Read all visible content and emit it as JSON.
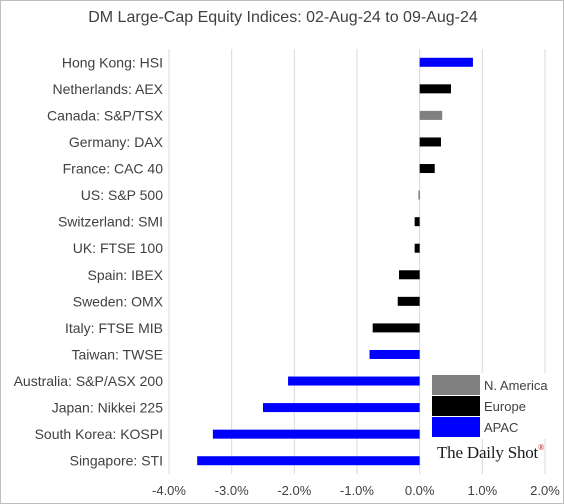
{
  "chart_data": {
    "type": "bar",
    "orientation": "horizontal",
    "title": "DM Large-Cap Equity Indices: 02-Aug-24 to 09-Aug-24",
    "categories": [
      "Hong Kong: HSI",
      "Netherlands: AEX",
      "Canada: S&P/TSX",
      "Germany: DAX",
      "France: CAC 40",
      "US: S&P 500",
      "Switzerland: SMI",
      "UK: FTSE 100",
      "Spain: IBEX",
      "Sweden: OMX",
      "Italy: FTSE MIB",
      "Taiwan: TWSE",
      "Australia: S&P/ASX 200",
      "Japan: Nikkei 225",
      "South Korea: KOSPI",
      "Singapore: STI"
    ],
    "values": [
      0.85,
      0.5,
      0.36,
      0.34,
      0.24,
      -0.02,
      -0.08,
      -0.08,
      -0.33,
      -0.35,
      -0.75,
      -0.8,
      -2.1,
      -2.5,
      -3.3,
      -3.55
    ],
    "regions": [
      "APAC",
      "Europe",
      "N. America",
      "Europe",
      "Europe",
      "N. America",
      "Europe",
      "Europe",
      "Europe",
      "Europe",
      "Europe",
      "APAC",
      "APAC",
      "APAC",
      "APAC",
      "APAC"
    ],
    "xlim": [
      -4.0,
      2.0
    ],
    "xticks": [
      -4.0,
      -3.0,
      -2.0,
      -1.0,
      0.0,
      1.0,
      2.0
    ],
    "xtick_labels": [
      "-4.0%",
      "-3.0%",
      "-2.0%",
      "-1.0%",
      "0.0%",
      "1.0%",
      "2.0%"
    ],
    "xlabel": "",
    "ylabel": "",
    "grid": "vertical",
    "legend": {
      "placement": "bottom-right",
      "entries": [
        {
          "name": "N. America",
          "color": "#808080"
        },
        {
          "name": "Europe",
          "color": "#000000"
        },
        {
          "name": "APAC",
          "color": "#0000ff"
        }
      ]
    },
    "source": "The Daily Shot"
  }
}
